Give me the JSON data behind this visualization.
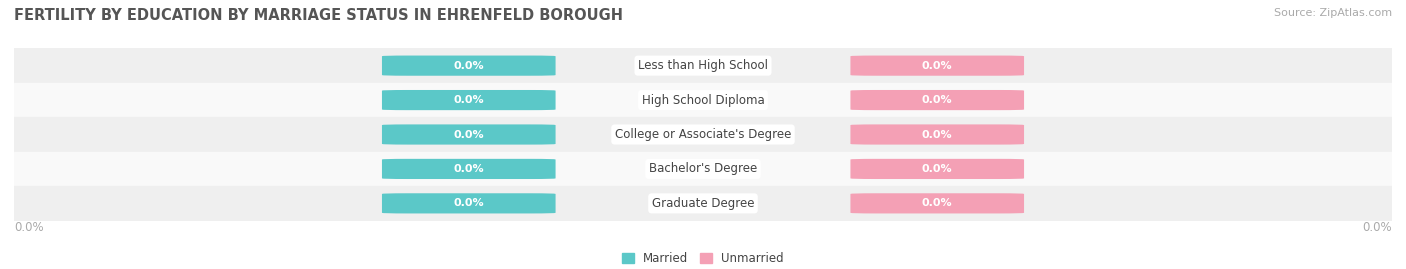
{
  "title": "FERTILITY BY EDUCATION BY MARRIAGE STATUS IN EHRENFELD BOROUGH",
  "source": "Source: ZipAtlas.com",
  "categories": [
    "Less than High School",
    "High School Diploma",
    "College or Associate's Degree",
    "Bachelor's Degree",
    "Graduate Degree"
  ],
  "married_values": [
    0.0,
    0.0,
    0.0,
    0.0,
    0.0
  ],
  "unmarried_values": [
    0.0,
    0.0,
    0.0,
    0.0,
    0.0
  ],
  "married_color": "#5bc8c8",
  "unmarried_color": "#f4a0b5",
  "row_bg_even": "#efefef",
  "row_bg_odd": "#f9f9f9",
  "title_color": "#555555",
  "label_color": "#444444",
  "axis_label_color": "#aaaaaa",
  "title_fontsize": 10.5,
  "label_fontsize": 8.5,
  "value_fontsize": 8,
  "source_fontsize": 8,
  "figsize": [
    14.06,
    2.69
  ],
  "dpi": 100
}
